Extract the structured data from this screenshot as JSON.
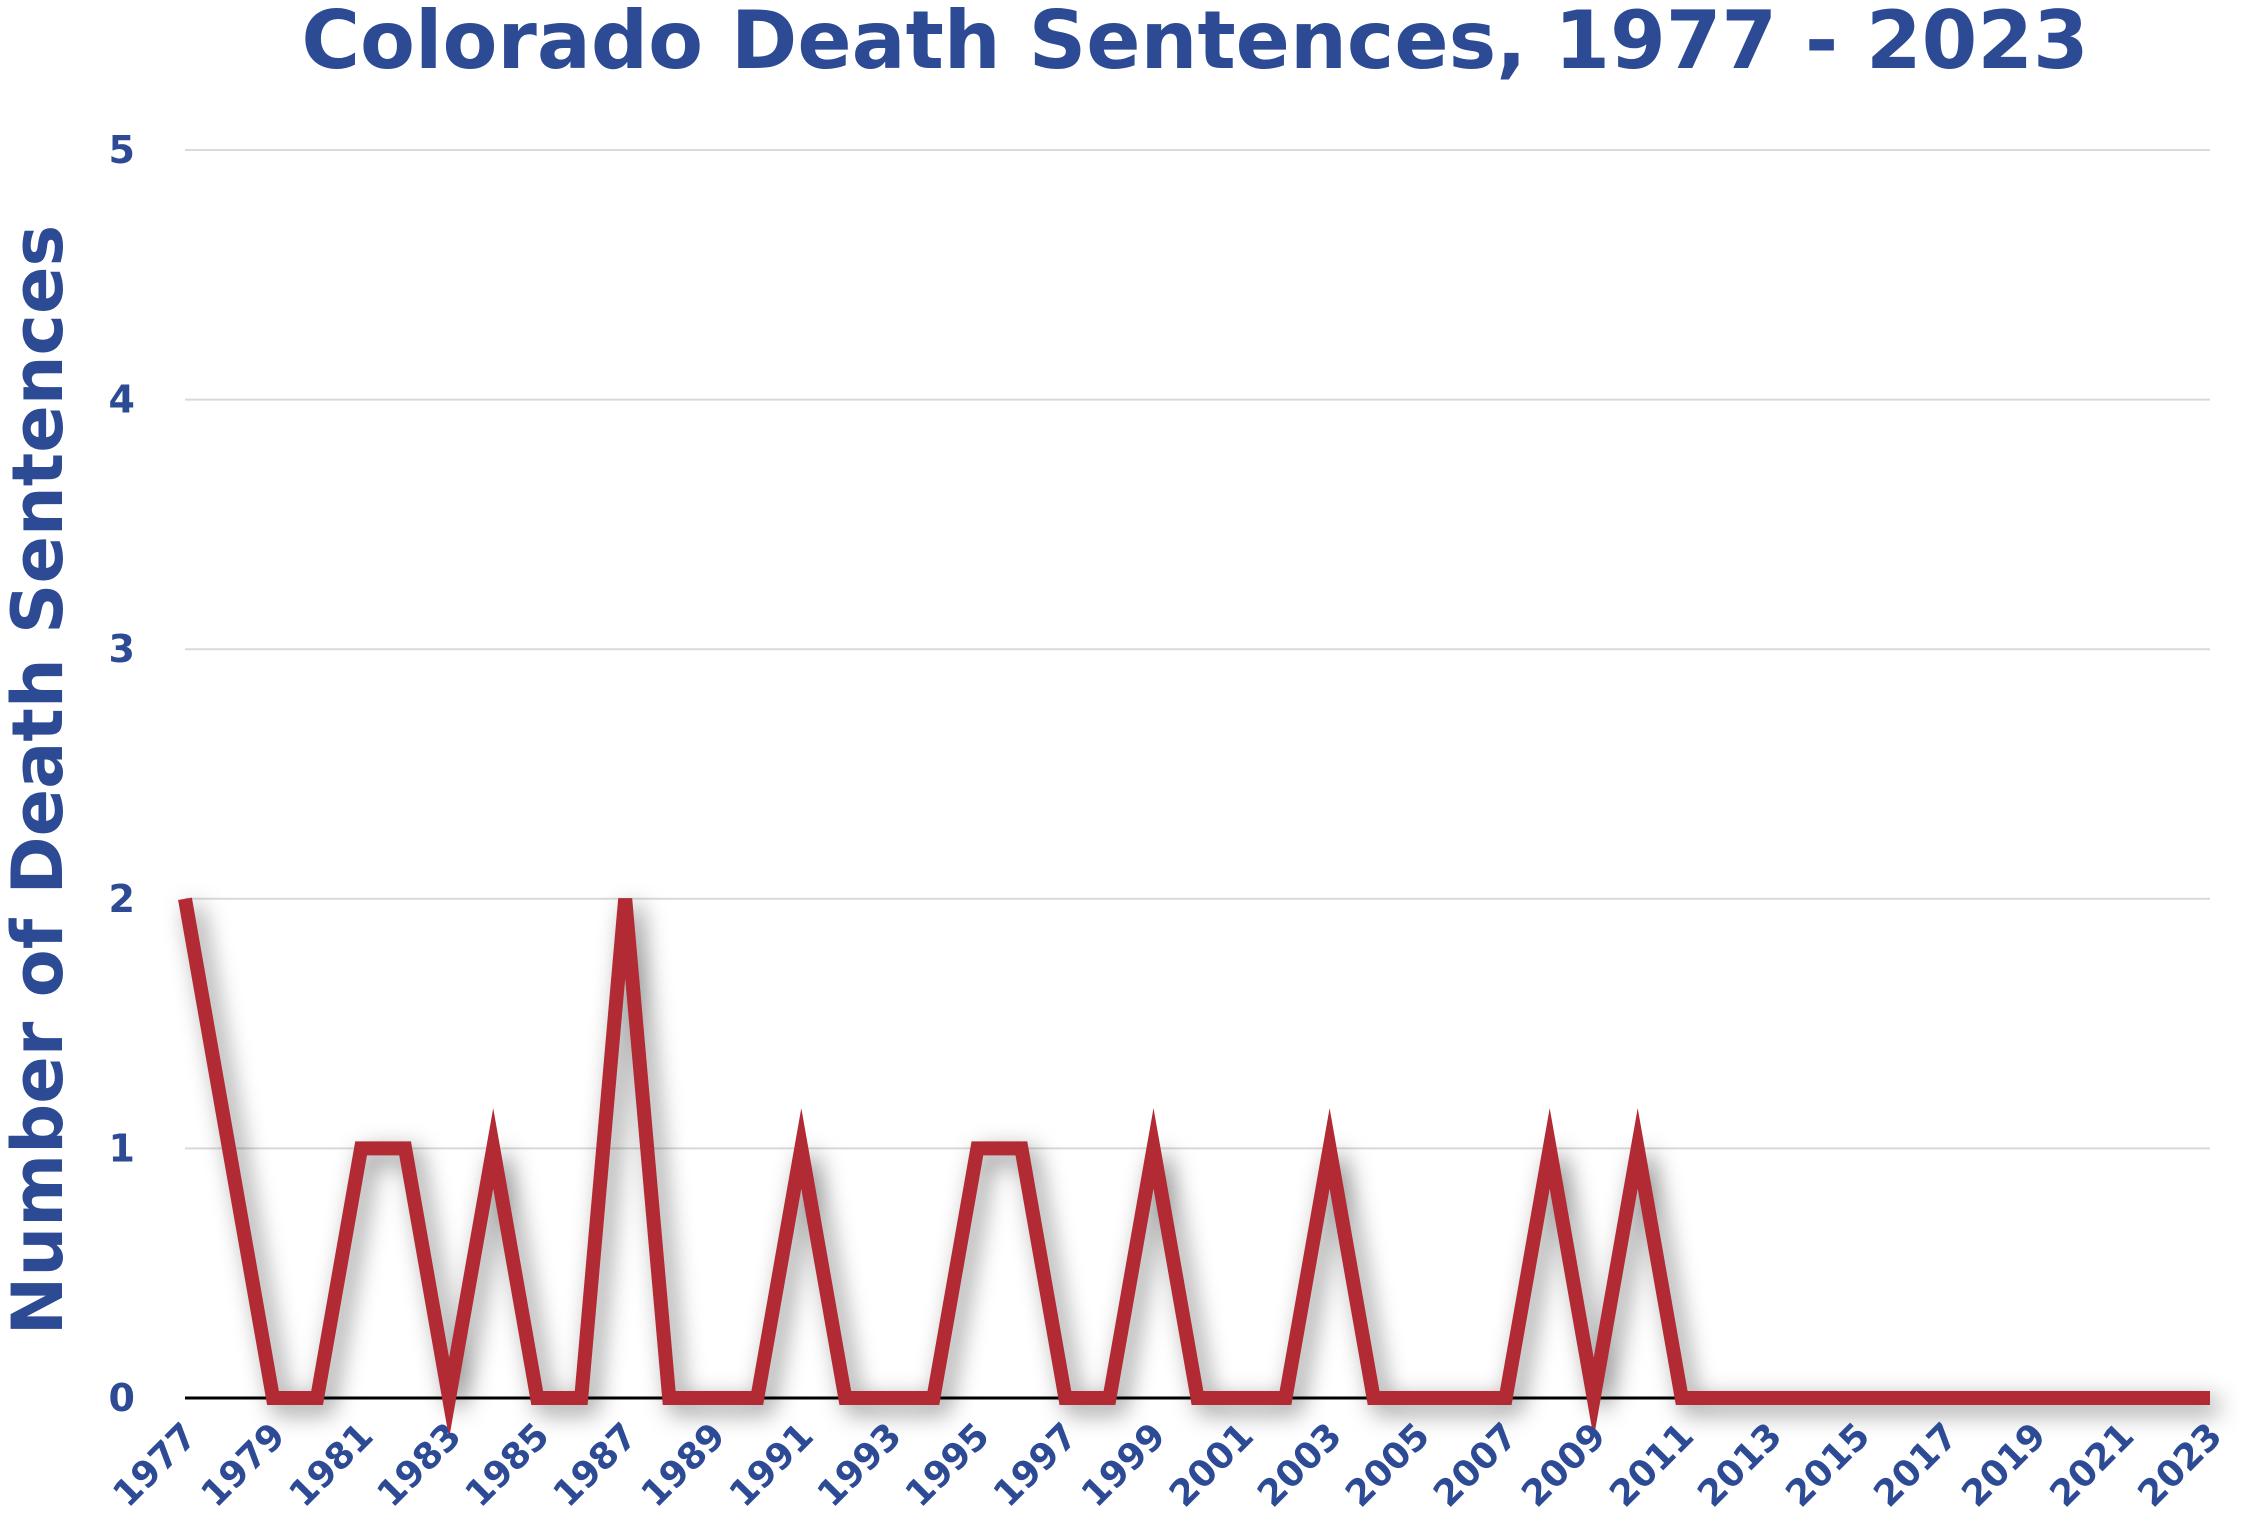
{
  "chart_data": {
    "type": "line",
    "title": "Colorado Death Sentences, 1977 - 2023",
    "ylabel": "Number of Death Sentences",
    "xlabel": "",
    "ylim": [
      0,
      5
    ],
    "yticks": [
      0,
      1,
      2,
      3,
      4,
      5
    ],
    "xtick_labels": [
      "1977",
      "1979",
      "1981",
      "1983",
      "1985",
      "1987",
      "1989",
      "1991",
      "1993",
      "1995",
      "1997",
      "1999",
      "2001",
      "2003",
      "2005",
      "2007",
      "2009",
      "2011",
      "2013",
      "2015",
      "2017",
      "2019",
      "2021",
      "2023"
    ],
    "grid": true,
    "x": [
      1977,
      1978,
      1979,
      1980,
      1981,
      1982,
      1983,
      1984,
      1985,
      1986,
      1987,
      1988,
      1989,
      1990,
      1991,
      1992,
      1993,
      1994,
      1995,
      1996,
      1997,
      1998,
      1999,
      2000,
      2001,
      2002,
      2003,
      2004,
      2005,
      2006,
      2007,
      2008,
      2009,
      2010,
      2011,
      2012,
      2013,
      2014,
      2015,
      2016,
      2017,
      2018,
      2019,
      2020,
      2021,
      2022,
      2023
    ],
    "series": [
      {
        "values": [
          2,
          1,
          0,
          0,
          1,
          1,
          0,
          1,
          0,
          0,
          2,
          0,
          0,
          0,
          1,
          0,
          0,
          0,
          1,
          1,
          0,
          0,
          1,
          0,
          0,
          0,
          1,
          0,
          0,
          0,
          0,
          1,
          0,
          1,
          0,
          0,
          0,
          0,
          0,
          0,
          0,
          0,
          0,
          0,
          0,
          0,
          0
        ],
        "color": "#b22a33"
      }
    ]
  }
}
